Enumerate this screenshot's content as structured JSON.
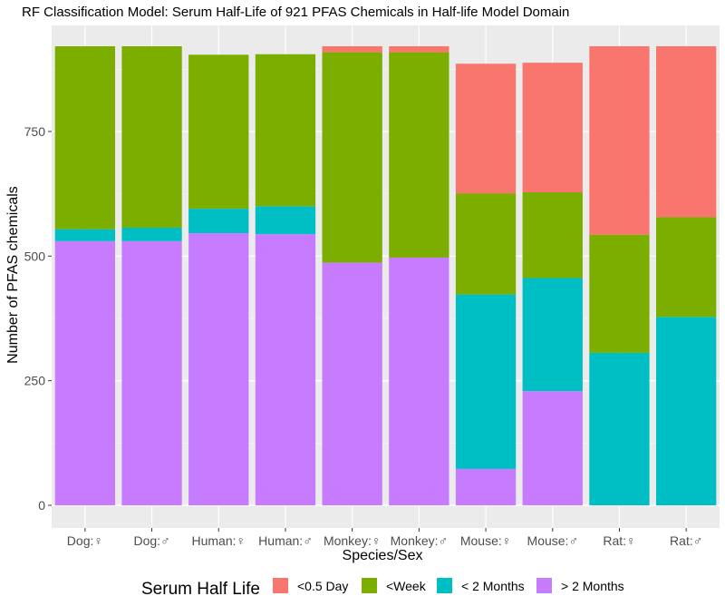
{
  "chart_data": {
    "type": "bar",
    "stacked": true,
    "title": "RF Classification Model: Serum Half-Life of 921 PFAS Chemicals in Half-life Model Domain",
    "xlabel": "Species/Sex",
    "ylabel": "Number of PFAS chemicals",
    "ylim": [
      0,
      921
    ],
    "yticks": [
      0,
      250,
      500,
      750
    ],
    "grid": true,
    "legend_position": "bottom",
    "legend_title": "Serum Half Life",
    "categories": [
      "Dog:♀",
      "Dog:♂",
      "Human:♀",
      "Human:♂",
      "Monkey:♀",
      "Monkey:♂",
      "Mouse:♀",
      "Mouse:♂",
      "Rat:♀",
      "Rat:♂"
    ],
    "series": [
      {
        "name": "> 2 Months",
        "color": "#C77CFF",
        "values": [
          530,
          530,
          546,
          544,
          487,
          497,
          73,
          229,
          0,
          0
        ]
      },
      {
        "name": "< 2 Months",
        "color": "#00BFC4",
        "values": [
          24,
          27,
          49,
          56,
          0,
          0,
          350,
          227,
          306,
          378
        ]
      },
      {
        "name": "<Week",
        "color": "#7CAE00",
        "values": [
          367,
          364,
          309,
          305,
          422,
          412,
          203,
          172,
          237,
          200
        ]
      },
      {
        "name": "<0.5 Day",
        "color": "#F8766D",
        "values": [
          0,
          0,
          0,
          0,
          12,
          12,
          260,
          260,
          378,
          343
        ]
      }
    ],
    "legend_order": [
      "<0.5 Day",
      "<Week",
      "< 2 Months",
      "> 2 Months"
    ]
  }
}
